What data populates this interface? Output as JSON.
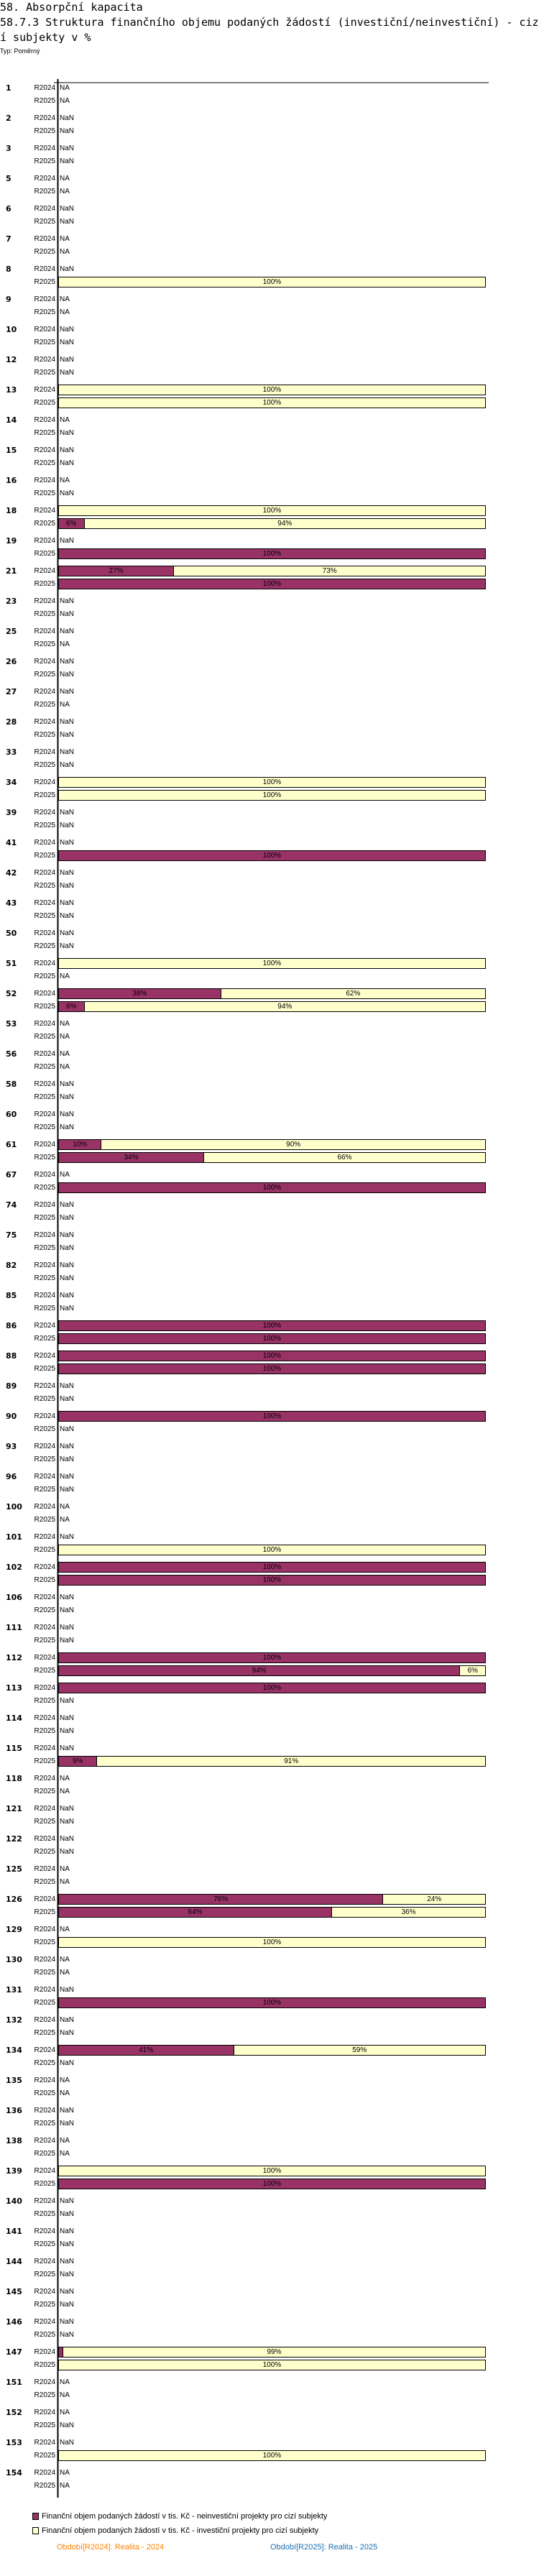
{
  "header": {
    "title": "58. Absorpční kapacita",
    "subtitle": "58.7.3 Struktura finančního objemu podaných žádostí (investiční/neinvestiční) - cizí subjekty v %",
    "type_label": "Typ: Poměrný"
  },
  "chart_data": {
    "type": "bar",
    "orientation": "horizontal-stacked-100",
    "title": "58.7.3 Struktura finančního objemu podaných žádostí (investiční/neinvestiční) - cizí subjekty v %",
    "xlim": [
      0,
      100
    ],
    "periods": [
      "R2024",
      "R2025"
    ],
    "series": [
      {
        "name": "Finanční objem podaných žádostí v tis. Kč - neinvestiční projekty pro cizí subjekty",
        "color": "#993366"
      },
      {
        "name": "Finanční objem podaných žádostí v tis. Kč - investiční projekty pro cizí subjekty",
        "color": "#FFFFCC"
      }
    ],
    "note": "rows: [group, R2024, R2025]; each value is NA, NaN, or [neinvestiční %, investiční %]",
    "rows": [
      [
        "1",
        "NA",
        "NA"
      ],
      [
        "2",
        "NaN",
        "NaN"
      ],
      [
        "3",
        "NaN",
        "NaN"
      ],
      [
        "5",
        "NA",
        "NA"
      ],
      [
        "6",
        "NaN",
        "NaN"
      ],
      [
        "7",
        "NA",
        "NA"
      ],
      [
        "8",
        "NaN",
        [
          0,
          100
        ]
      ],
      [
        "9",
        "NA",
        "NA"
      ],
      [
        "10",
        "NaN",
        "NaN"
      ],
      [
        "12",
        "NaN",
        "NaN"
      ],
      [
        "13",
        [
          0,
          100
        ],
        [
          0,
          100
        ]
      ],
      [
        "14",
        "NA",
        "NaN"
      ],
      [
        "15",
        "NaN",
        "NaN"
      ],
      [
        "16",
        "NA",
        "NaN"
      ],
      [
        "18",
        [
          0,
          100
        ],
        [
          6,
          94
        ]
      ],
      [
        "19",
        "NaN",
        [
          100,
          0
        ]
      ],
      [
        "21",
        [
          27,
          73
        ],
        [
          100,
          0
        ]
      ],
      [
        "23",
        "NaN",
        "NaN"
      ],
      [
        "25",
        "NaN",
        "NA"
      ],
      [
        "26",
        "NaN",
        "NaN"
      ],
      [
        "27",
        "NaN",
        "NA"
      ],
      [
        "28",
        "NaN",
        "NaN"
      ],
      [
        "33",
        "NaN",
        "NaN"
      ],
      [
        "34",
        [
          0,
          100
        ],
        [
          0,
          100
        ]
      ],
      [
        "39",
        "NaN",
        "NaN"
      ],
      [
        "41",
        "NaN",
        [
          100,
          0
        ]
      ],
      [
        "42",
        "NaN",
        "NaN"
      ],
      [
        "43",
        "NaN",
        "NaN"
      ],
      [
        "50",
        "NaN",
        "NaN"
      ],
      [
        "51",
        [
          0,
          100
        ],
        "NA"
      ],
      [
        "52",
        [
          38,
          62
        ],
        [
          6,
          94
        ]
      ],
      [
        "53",
        "NA",
        "NA"
      ],
      [
        "56",
        "NA",
        "NA"
      ],
      [
        "58",
        "NaN",
        "NaN"
      ],
      [
        "60",
        "NaN",
        "NaN"
      ],
      [
        "61",
        [
          10,
          90
        ],
        [
          34,
          66
        ]
      ],
      [
        "67",
        "NA",
        [
          100,
          0
        ]
      ],
      [
        "74",
        "NaN",
        "NaN"
      ],
      [
        "75",
        "NaN",
        "NaN"
      ],
      [
        "82",
        "NaN",
        "NaN"
      ],
      [
        "85",
        "NaN",
        "NaN"
      ],
      [
        "86",
        [
          100,
          0
        ],
        [
          100,
          0
        ]
      ],
      [
        "88",
        [
          100,
          0
        ],
        [
          100,
          0
        ]
      ],
      [
        "89",
        "NaN",
        "NaN"
      ],
      [
        "90",
        [
          100,
          0
        ],
        "NaN"
      ],
      [
        "93",
        "NaN",
        "NaN"
      ],
      [
        "96",
        "NaN",
        "NaN"
      ],
      [
        "100",
        "NA",
        "NA"
      ],
      [
        "101",
        "NaN",
        [
          0,
          100
        ]
      ],
      [
        "102",
        [
          100,
          0
        ],
        [
          100,
          0
        ]
      ],
      [
        "106",
        "NaN",
        "NaN"
      ],
      [
        "111",
        "NaN",
        "NaN"
      ],
      [
        "112",
        [
          100,
          0
        ],
        [
          94,
          6
        ]
      ],
      [
        "113",
        [
          100,
          0
        ],
        "NaN"
      ],
      [
        "114",
        "NaN",
        "NaN"
      ],
      [
        "115",
        "NaN",
        [
          9,
          91
        ]
      ],
      [
        "118",
        "NA",
        "NA"
      ],
      [
        "121",
        "NaN",
        "NaN"
      ],
      [
        "122",
        "NaN",
        "NaN"
      ],
      [
        "125",
        "NA",
        "NA"
      ],
      [
        "126",
        [
          76,
          24
        ],
        [
          64,
          36
        ]
      ],
      [
        "129",
        "NA",
        [
          0,
          100
        ]
      ],
      [
        "130",
        "NA",
        "NA"
      ],
      [
        "131",
        "NaN",
        [
          100,
          0
        ]
      ],
      [
        "132",
        "NaN",
        "NaN"
      ],
      [
        "134",
        [
          41,
          59
        ],
        "NaN"
      ],
      [
        "135",
        "NA",
        "NA"
      ],
      [
        "136",
        "NaN",
        "NaN"
      ],
      [
        "138",
        "NA",
        "NA"
      ],
      [
        "139",
        [
          0,
          100
        ],
        [
          100,
          0
        ]
      ],
      [
        "140",
        "NaN",
        "NaN"
      ],
      [
        "141",
        "NaN",
        "NaN"
      ],
      [
        "144",
        "NaN",
        "NaN"
      ],
      [
        "145",
        "NaN",
        "NaN"
      ],
      [
        "146",
        "NaN",
        "NaN"
      ],
      [
        "147",
        [
          1,
          99
        ],
        [
          0,
          100
        ]
      ],
      [
        "151",
        "NA",
        "NA"
      ],
      [
        "152",
        "NA",
        "NaN"
      ],
      [
        "153",
        "NaN",
        [
          0,
          100
        ]
      ],
      [
        "154",
        "NA",
        "NA"
      ]
    ]
  },
  "legend": {
    "items": [
      "Finanční objem podaných žádostí v tis. Kč - neinvestiční projekty pro cizí subjekty",
      "Finanční objem podaných žádostí v tis. Kč - investiční projekty pro cizí subjekty"
    ],
    "period_2024": "Období[R2024]: Realita - 2024",
    "period_2025": "Období[R2025]: Realita - 2025",
    "period_2024_color": "#FF8000",
    "period_2025_color": "#1A6FB5"
  }
}
